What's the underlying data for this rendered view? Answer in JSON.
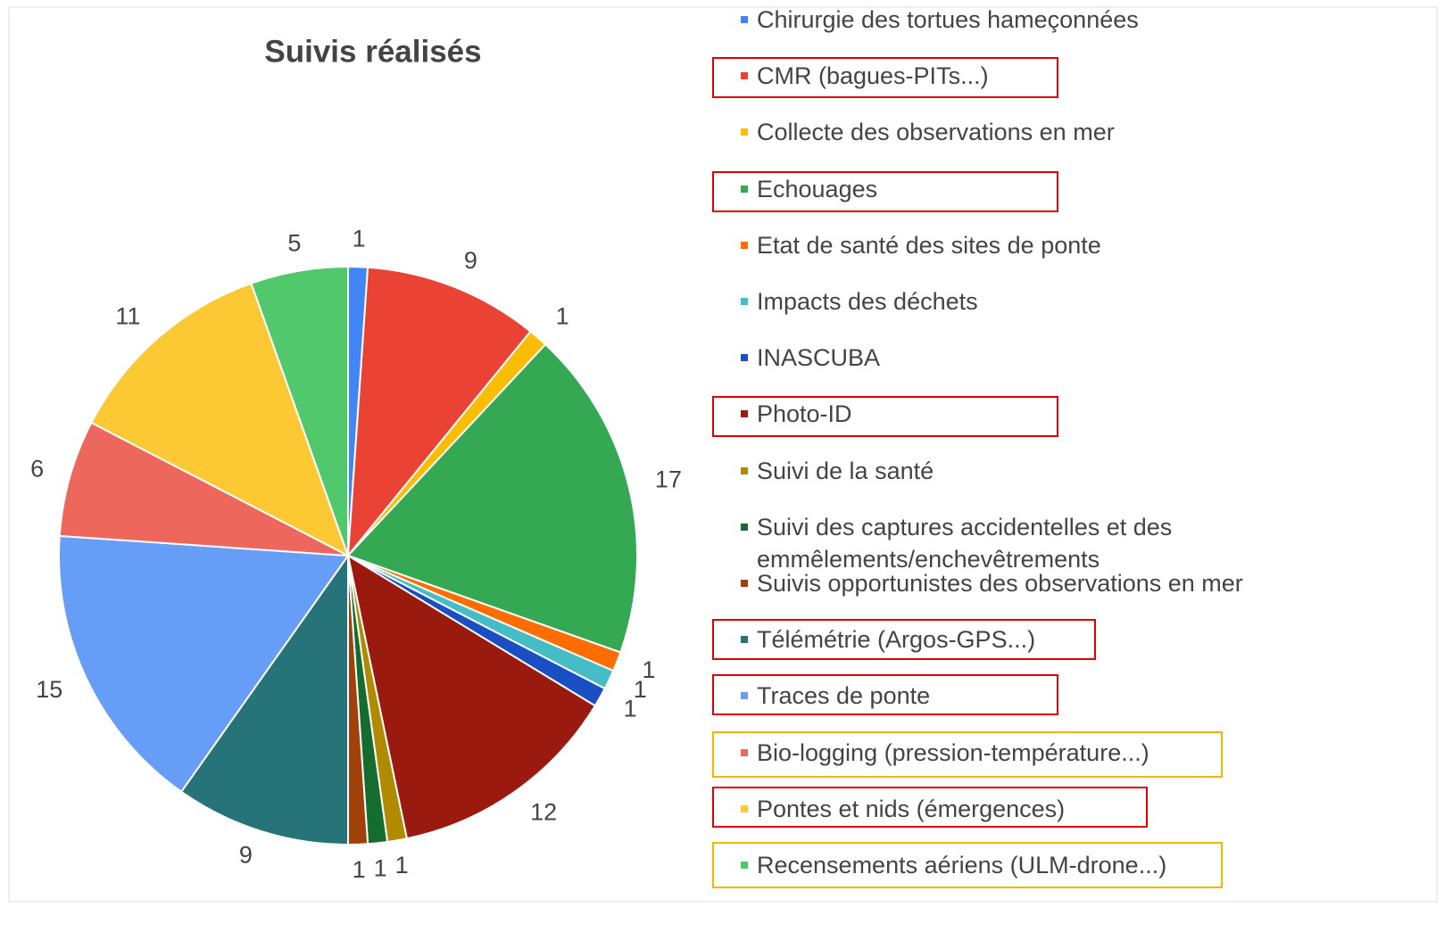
{
  "chart_data": {
    "type": "pie",
    "title": "Suivis réalisés",
    "categories": [
      "Chirurgie des tortues hameçonnées",
      "CMR (bagues-PITs...)",
      "Collecte des observations en mer",
      "Echouages",
      "Etat de santé des sites de ponte",
      "Impacts des déchets",
      "INASCUBA",
      "Photo-ID",
      "Suivi de la santé",
      "Suivi des captures accidentelles et des emmêlements/enchevêtrements",
      "Suivis opportunistes des observations en mer",
      "Télémétrie (Argos-GPS...)",
      "Traces de ponte",
      "Bio-logging (pression-température...)",
      "Pontes et nids (émergences)",
      "Recensements aériens (ULM-drone...)"
    ],
    "values": [
      1,
      9,
      1,
      17,
      1,
      1,
      1,
      12,
      1,
      1,
      1,
      9,
      15,
      6,
      11,
      5
    ],
    "colors": [
      "#4285f4",
      "#ea4335",
      "#fbbc04",
      "#34a853",
      "#ff6d01",
      "#46bdc6",
      "#1a4fc4",
      "#9b1a10",
      "#b08a00",
      "#146c2e",
      "#a0400a",
      "#26737a",
      "#669df6",
      "#ee675c",
      "#fcc934",
      "#51c86c"
    ],
    "legend": "right"
  }
}
